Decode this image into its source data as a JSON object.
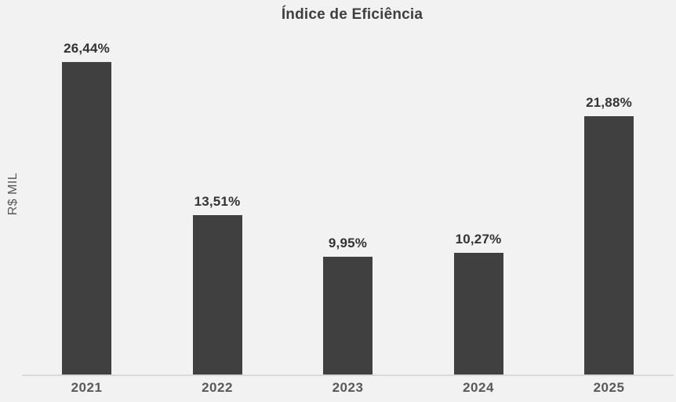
{
  "chart_data": {
    "type": "bar",
    "title": "Índice de Eficiência",
    "ylabel": "R$ MIL",
    "xlabel": "",
    "categories": [
      "2021",
      "2022",
      "2023",
      "2024",
      "2025"
    ],
    "values": [
      26.44,
      13.51,
      9.95,
      10.27,
      21.88
    ],
    "value_labels": [
      "26,44%",
      "13,51%",
      "9,95%",
      "10,27%",
      "21,88%"
    ],
    "unit": "%",
    "ylim": [
      0,
      29
    ],
    "grid": false,
    "legend": false,
    "legend_position": "none",
    "colors": {
      "background": "#f2f2f2",
      "bar": "#404040",
      "title": "#3f3f3f",
      "value_label": "#333333",
      "axis_label": "#595959",
      "axis_line": "#d9d9d9"
    }
  }
}
